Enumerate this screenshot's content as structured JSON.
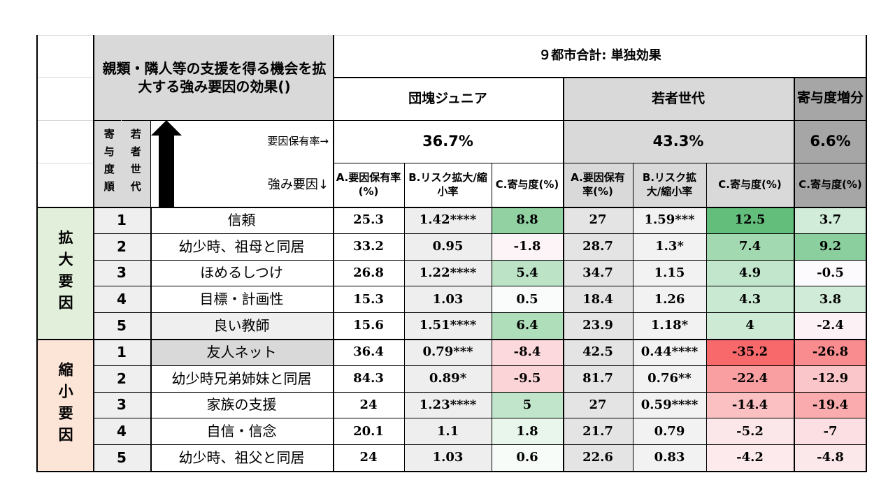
{
  "header": {
    "title": "親類・隣人等の支援を得る機会を拡大する強み要因の効果()",
    "study": "９都市合計: 単独効果",
    "group1": "団塊ジュニア",
    "group2": "若者世代",
    "group3": "寄与度増分",
    "sidebar_top": "寄与度順",
    "sidebar_bottom": "若者世代",
    "possession_label": "要因保有率→",
    "factor_label": "強み要因↓",
    "g1_rate": "36.7%",
    "g2_rate": "43.3%",
    "g3_rate": "6.6%",
    "col_a": "A.要因保有率(%)",
    "col_b": "B.リスク拡大/縮小率",
    "col_c": "C.寄与度(%)"
  },
  "sections": [
    {
      "label": "拡大要因",
      "rows": [
        {
          "rank": "1",
          "factor": "信頼",
          "a1": "25.3",
          "b1": "1.42****",
          "c1": "8.8",
          "a2": "27",
          "b2": "1.59***",
          "c2": "12.5",
          "d": "3.7"
        },
        {
          "rank": "2",
          "factor": "幼少時、祖母と同居",
          "a1": "33.2",
          "b1": "0.95",
          "c1": "-1.8",
          "a2": "28.7",
          "b2": "1.3*",
          "c2": "7.4",
          "d": "9.2"
        },
        {
          "rank": "3",
          "factor": "ほめるしつけ",
          "a1": "26.8",
          "b1": "1.22****",
          "c1": "5.4",
          "a2": "34.7",
          "b2": "1.15",
          "c2": "4.9",
          "d": "-0.5"
        },
        {
          "rank": "4",
          "factor": "目標・計画性",
          "a1": "15.3",
          "b1": "1.03",
          "c1": "0.5",
          "a2": "18.4",
          "b2": "1.26",
          "c2": "4.3",
          "d": "3.8"
        },
        {
          "rank": "5",
          "factor": "良い教師",
          "a1": "15.6",
          "b1": "1.51****",
          "c1": "6.4",
          "a2": "23.9",
          "b2": "1.18*",
          "c2": "4",
          "d": "-2.4"
        }
      ]
    },
    {
      "label": "縮小要因",
      "rows": [
        {
          "rank": "1",
          "factor": "友人ネット",
          "a1": "36.4",
          "b1": "0.79***",
          "c1": "-8.4",
          "a2": "42.5",
          "b2": "0.44****",
          "c2": "-35.2",
          "d": "-26.8"
        },
        {
          "rank": "2",
          "factor": "幼少時兄弟姉妹と同居",
          "a1": "84.3",
          "b1": "0.89*",
          "c1": "-9.5",
          "a2": "81.7",
          "b2": "0.76**",
          "c2": "-22.4",
          "d": "-12.9"
        },
        {
          "rank": "3",
          "factor": "家族の支援",
          "a1": "24",
          "b1": "1.23****",
          "c1": "5",
          "a2": "27",
          "b2": "0.59****",
          "c2": "-14.4",
          "d": "-19.4"
        },
        {
          "rank": "4",
          "factor": "自信・信念",
          "a1": "20.1",
          "b1": "1.1",
          "c1": "1.8",
          "a2": "21.7",
          "b2": "0.79",
          "c2": "-5.2",
          "d": "-7"
        },
        {
          "rank": "5",
          "factor": "幼少時、祖父と同居",
          "a1": "24",
          "b1": "1.03",
          "c1": "0.6",
          "a2": "22.6",
          "b2": "0.83",
          "c2": "-4.2",
          "d": "-4.8"
        }
      ]
    }
  ],
  "colors": {
    "header_gray": "#d9d9d9",
    "dark_gray": "#a6a6a6",
    "light_gray": "#efefef",
    "expand_bg": "#e2efda",
    "shrink_bg": "#fce4d6",
    "positive": "#63be7b",
    "negative": "#f8696b"
  }
}
